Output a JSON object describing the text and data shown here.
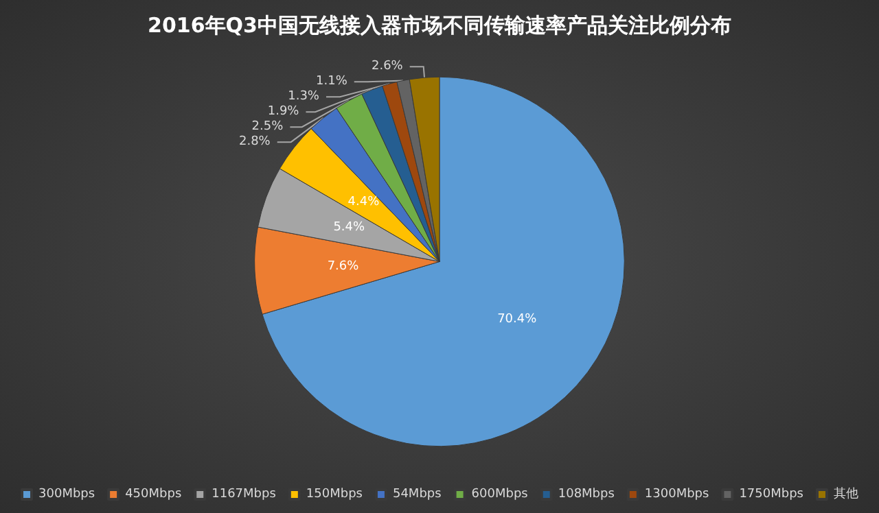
{
  "chart_data": {
    "type": "pie",
    "title": "2016年Q3中国无线接入器市场不同传输速率产品关注比例分布",
    "categories": [
      "300Mbps",
      "450Mbps",
      "1167Mbps",
      "150Mbps",
      "54Mbps",
      "600Mbps",
      "108Mbps",
      "1300Mbps",
      "1750Mbps",
      "其他"
    ],
    "values": [
      70.4,
      7.6,
      5.4,
      4.4,
      2.8,
      2.5,
      1.9,
      1.3,
      1.1,
      2.6
    ],
    "colors": [
      "#5b9bd5",
      "#ed7d31",
      "#a5a5a5",
      "#ffc000",
      "#4472c4",
      "#70ad47",
      "#255e91",
      "#9e480e",
      "#636363",
      "#997300"
    ],
    "value_labels": [
      "70.4%",
      "7.6%",
      "5.4%",
      "4.4%",
      "2.8%",
      "2.5%",
      "1.9%",
      "1.3%",
      "1.1%",
      "2.6%"
    ],
    "legend": "bottom"
  }
}
